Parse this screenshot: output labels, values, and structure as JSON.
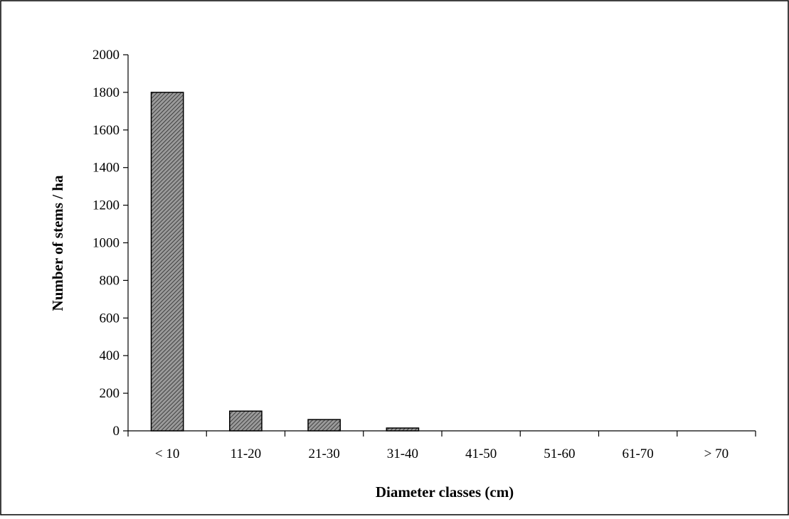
{
  "chart_data": {
    "type": "bar",
    "categories": [
      "< 10",
      "11-20",
      "21-30",
      "31-40",
      "41-50",
      "51-60",
      "61-70",
      "> 70"
    ],
    "values": [
      1800,
      105,
      60,
      15,
      0,
      0,
      0,
      0
    ],
    "xlabel": "Diameter classes (cm)",
    "ylabel": "Number of stems / ha",
    "ylim": [
      0,
      2000
    ],
    "yticks": [
      0,
      200,
      400,
      600,
      800,
      1000,
      1200,
      1400,
      1600,
      1800,
      2000
    ],
    "grid": false,
    "legend": "none",
    "bar_fill_pattern": "diagonal-hatch",
    "bar_color": "#333333"
  }
}
